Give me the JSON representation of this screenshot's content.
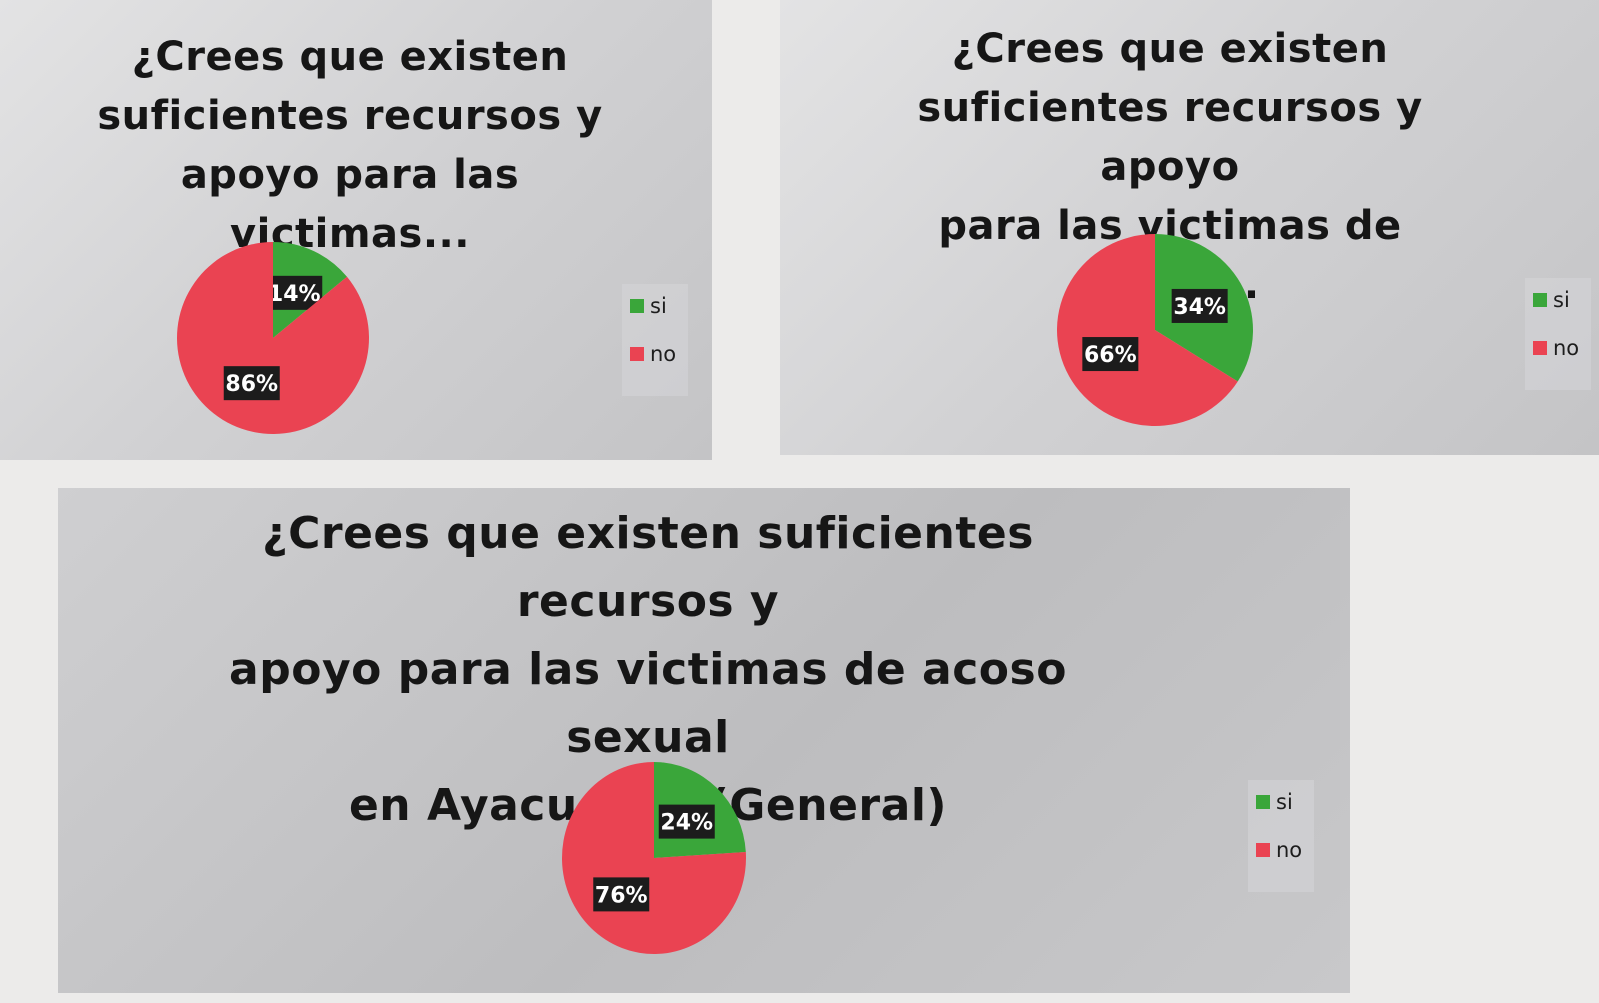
{
  "colors": {
    "si": "#3aa63a",
    "no": "#ea4352",
    "label_bg": "#1c1c1c",
    "label_fg": "#ffffff"
  },
  "legend": {
    "si": "si",
    "no": "no"
  },
  "chart_data": [
    {
      "type": "pie",
      "title": "¿Crees que existen\nsuficientes recursos y\napoyo para las victimas...",
      "categories": [
        "si",
        "no"
      ],
      "values": [
        14,
        86
      ],
      "labels": [
        "14%",
        "86%"
      ],
      "legend_position": "right"
    },
    {
      "type": "pie",
      "title": "¿Crees que existen\nsuficientes recursos y apoyo\npara las victimas de acoso...",
      "categories": [
        "si",
        "no"
      ],
      "values": [
        34,
        66
      ],
      "labels": [
        "34%",
        "66%"
      ],
      "legend_position": "right"
    },
    {
      "type": "pie",
      "title": "¿Crees que existen suficientes recursos y\napoyo para las victimas de acoso sexual\nen Ayacucho? (General)",
      "categories": [
        "si",
        "no"
      ],
      "values": [
        24,
        76
      ],
      "labels": [
        "24%",
        "76%"
      ],
      "legend_position": "right"
    }
  ]
}
